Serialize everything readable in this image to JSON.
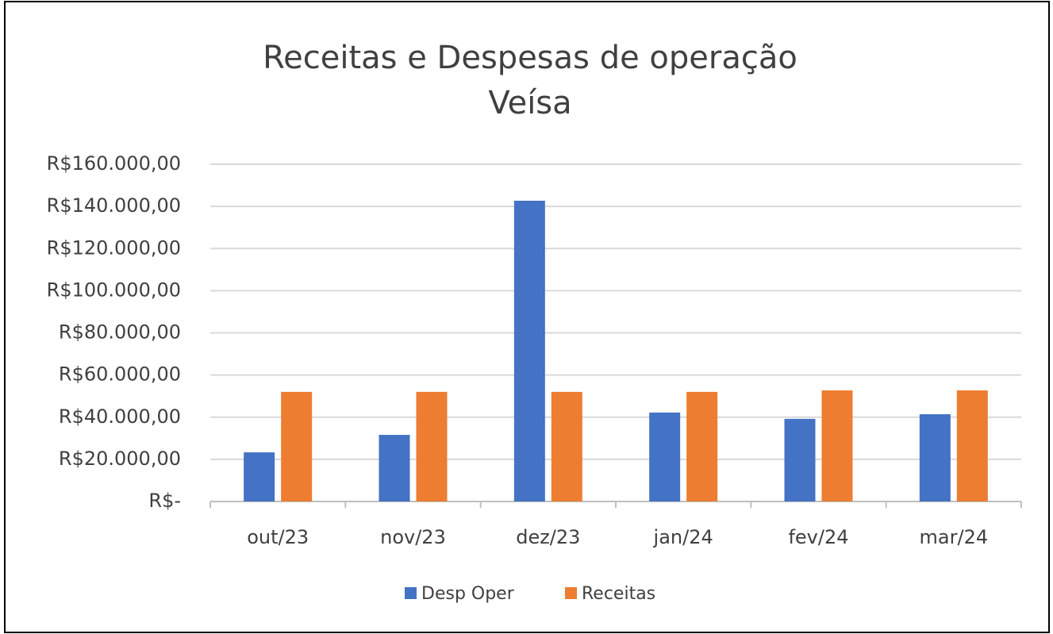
{
  "chart_data": {
    "type": "bar",
    "title": [
      "Receitas e Despesas de operação",
      "Veísa"
    ],
    "categories": [
      "out/23",
      "nov/23",
      "dez/23",
      "jan/24",
      "fev/24",
      "mar/24"
    ],
    "series": [
      {
        "name": "Desp Oper",
        "color": "#4472c4",
        "values": [
          23300,
          31600,
          142700,
          42200,
          39200,
          41400
        ]
      },
      {
        "name": "Receitas",
        "color": "#ed7d31",
        "values": [
          52000,
          52000,
          52000,
          52000,
          52700,
          52700
        ]
      }
    ],
    "ylim": [
      0,
      160000
    ],
    "yticks": [
      {
        "value": 0,
        "label": "R$-"
      },
      {
        "value": 20000,
        "label": "R$20.000,00"
      },
      {
        "value": 40000,
        "label": "R$40.000,00"
      },
      {
        "value": 60000,
        "label": "R$60.000,00"
      },
      {
        "value": 80000,
        "label": "R$80.000,00"
      },
      {
        "value": 100000,
        "label": "R$100.000,00"
      },
      {
        "value": 120000,
        "label": "R$120.000,00"
      },
      {
        "value": 140000,
        "label": "R$140.000,00"
      },
      {
        "value": 160000,
        "label": "R$160.000,00"
      }
    ],
    "grid": true,
    "legend": "bottom"
  }
}
